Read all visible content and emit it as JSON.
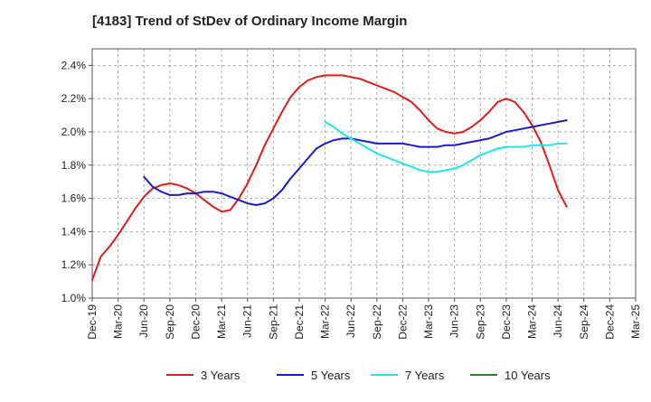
{
  "chart_data": {
    "type": "line",
    "title": "[4183]  Trend of StDev of Ordinary Income Margin",
    "xlabel": "",
    "ylabel": "",
    "ylim": [
      1.0,
      2.5
    ],
    "y_ticks": [
      "1.0%",
      "1.2%",
      "1.4%",
      "1.6%",
      "1.8%",
      "2.0%",
      "2.2%",
      "2.4%"
    ],
    "y_tick_values": [
      1.0,
      1.2,
      1.4,
      1.6,
      1.8,
      2.0,
      2.2,
      2.4
    ],
    "x_ticks": [
      "Dec-19",
      "Mar-20",
      "Jun-20",
      "Sep-20",
      "Dec-20",
      "Mar-21",
      "Jun-21",
      "Sep-21",
      "Dec-21",
      "Mar-22",
      "Jun-22",
      "Sep-22",
      "Dec-22",
      "Mar-23",
      "Jun-23",
      "Sep-23",
      "Dec-23",
      "Mar-24",
      "Jun-24",
      "Sep-24",
      "Dec-24",
      "Mar-25"
    ],
    "grid": true,
    "legend_position": "bottom",
    "series": [
      {
        "name": "3 Years",
        "color": "#dd1c1c",
        "points": [
          [
            0,
            1.11
          ],
          [
            1,
            1.25
          ],
          [
            2,
            1.31
          ],
          [
            3,
            1.38
          ],
          [
            4,
            1.46
          ],
          [
            5,
            1.54
          ],
          [
            6,
            1.61
          ],
          [
            7,
            1.66
          ],
          [
            8,
            1.68
          ],
          [
            9,
            1.69
          ],
          [
            10,
            1.68
          ],
          [
            11,
            1.66
          ],
          [
            12,
            1.63
          ],
          [
            13,
            1.59
          ],
          [
            14,
            1.55
          ],
          [
            15,
            1.52
          ],
          [
            16,
            1.53
          ],
          [
            17,
            1.6
          ],
          [
            18,
            1.69
          ],
          [
            19,
            1.8
          ],
          [
            20,
            1.92
          ],
          [
            21,
            2.02
          ],
          [
            22,
            2.12
          ],
          [
            23,
            2.21
          ],
          [
            24,
            2.27
          ],
          [
            25,
            2.31
          ],
          [
            26,
            2.33
          ],
          [
            27,
            2.34
          ],
          [
            28,
            2.34
          ],
          [
            29,
            2.34
          ],
          [
            30,
            2.33
          ],
          [
            31,
            2.32
          ],
          [
            32,
            2.3
          ],
          [
            33,
            2.28
          ],
          [
            34,
            2.26
          ],
          [
            35,
            2.24
          ],
          [
            36,
            2.21
          ],
          [
            37,
            2.18
          ],
          [
            38,
            2.13
          ],
          [
            39,
            2.07
          ],
          [
            40,
            2.02
          ],
          [
            41,
            2.0
          ],
          [
            42,
            1.99
          ],
          [
            43,
            2.0
          ],
          [
            44,
            2.03
          ],
          [
            45,
            2.07
          ],
          [
            46,
            2.12
          ],
          [
            47,
            2.18
          ],
          [
            48,
            2.2
          ],
          [
            49,
            2.18
          ],
          [
            50,
            2.12
          ],
          [
            51,
            2.04
          ],
          [
            52,
            1.94
          ],
          [
            53,
            1.8
          ],
          [
            54,
            1.65
          ],
          [
            55,
            1.55
          ]
        ]
      },
      {
        "name": "5 Years",
        "color": "#1a1acc",
        "points": [
          [
            6,
            1.73
          ],
          [
            7,
            1.67
          ],
          [
            8,
            1.64
          ],
          [
            9,
            1.62
          ],
          [
            10,
            1.62
          ],
          [
            11,
            1.63
          ],
          [
            12,
            1.63
          ],
          [
            13,
            1.64
          ],
          [
            14,
            1.64
          ],
          [
            15,
            1.63
          ],
          [
            16,
            1.61
          ],
          [
            17,
            1.59
          ],
          [
            18,
            1.57
          ],
          [
            19,
            1.56
          ],
          [
            20,
            1.57
          ],
          [
            21,
            1.6
          ],
          [
            22,
            1.65
          ],
          [
            23,
            1.72
          ],
          [
            24,
            1.78
          ],
          [
            25,
            1.84
          ],
          [
            26,
            1.9
          ],
          [
            27,
            1.93
          ],
          [
            28,
            1.95
          ],
          [
            29,
            1.96
          ],
          [
            30,
            1.96
          ],
          [
            31,
            1.95
          ],
          [
            32,
            1.94
          ],
          [
            33,
            1.93
          ],
          [
            34,
            1.93
          ],
          [
            35,
            1.93
          ],
          [
            36,
            1.93
          ],
          [
            37,
            1.92
          ],
          [
            38,
            1.91
          ],
          [
            39,
            1.91
          ],
          [
            40,
            1.91
          ],
          [
            41,
            1.92
          ],
          [
            42,
            1.92
          ],
          [
            43,
            1.93
          ],
          [
            44,
            1.94
          ],
          [
            45,
            1.95
          ],
          [
            46,
            1.96
          ],
          [
            47,
            1.98
          ],
          [
            48,
            2.0
          ],
          [
            49,
            2.01
          ],
          [
            50,
            2.02
          ],
          [
            51,
            2.03
          ],
          [
            52,
            2.04
          ],
          [
            53,
            2.05
          ],
          [
            54,
            2.06
          ],
          [
            55,
            2.07
          ]
        ]
      },
      {
        "name": "7 Years",
        "color": "#22e5e5",
        "points": [
          [
            27,
            2.06
          ],
          [
            28,
            2.03
          ],
          [
            29,
            1.99
          ],
          [
            30,
            1.96
          ],
          [
            31,
            1.93
          ],
          [
            32,
            1.9
          ],
          [
            33,
            1.87
          ],
          [
            34,
            1.85
          ],
          [
            35,
            1.83
          ],
          [
            36,
            1.81
          ],
          [
            37,
            1.79
          ],
          [
            38,
            1.77
          ],
          [
            39,
            1.76
          ],
          [
            40,
            1.76
          ],
          [
            41,
            1.77
          ],
          [
            42,
            1.78
          ],
          [
            43,
            1.8
          ],
          [
            44,
            1.83
          ],
          [
            45,
            1.86
          ],
          [
            46,
            1.88
          ],
          [
            47,
            1.9
          ],
          [
            48,
            1.91
          ],
          [
            49,
            1.91
          ],
          [
            50,
            1.91
          ],
          [
            51,
            1.92
          ],
          [
            52,
            1.92
          ],
          [
            53,
            1.92
          ],
          [
            54,
            1.93
          ],
          [
            55,
            1.93
          ]
        ]
      },
      {
        "name": "10 Years",
        "color": "#1a8a1a",
        "points": []
      }
    ]
  }
}
